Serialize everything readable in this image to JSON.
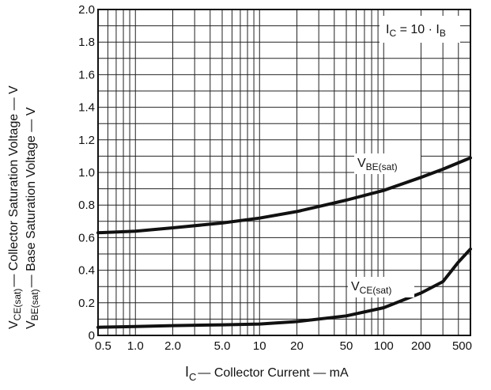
{
  "chart_data": {
    "type": "line",
    "title": "",
    "xscale": "log",
    "xlim": [
      0.5,
      500
    ],
    "ylim": [
      0,
      2.0
    ],
    "grid": true,
    "xlabel": {
      "main": "I",
      "sub": "C",
      "rest": "— Collector Current — mA"
    },
    "ylabel_outer": {
      "main": "V",
      "sub": "CE(sat)",
      "rest": "— Collector Saturation Voltage — V"
    },
    "ylabel_inner": {
      "main": "V",
      "sub": "BE(sat)",
      "rest": "— Base Saturation Voltage — V"
    },
    "x_tick_labels": [
      {
        "x": 0.5,
        "text": "0.5"
      },
      {
        "x": 1,
        "text": "1.0"
      },
      {
        "x": 2,
        "text": "2.0"
      },
      {
        "x": 5,
        "text": "5.0"
      },
      {
        "x": 10,
        "text": "10"
      },
      {
        "x": 20,
        "text": "20"
      },
      {
        "x": 50,
        "text": "50"
      },
      {
        "x": 100,
        "text": "100"
      },
      {
        "x": 200,
        "text": "200"
      },
      {
        "x": 500,
        "text": "500"
      }
    ],
    "y_tick_labels": [
      {
        "y": 0,
        "text": "0"
      },
      {
        "y": 0.2,
        "text": "0.2"
      },
      {
        "y": 0.4,
        "text": "0.4"
      },
      {
        "y": 0.6,
        "text": "0.6"
      },
      {
        "y": 0.8,
        "text": "0.8"
      },
      {
        "y": 1.0,
        "text": "1.0"
      },
      {
        "y": 1.2,
        "text": "1.2"
      },
      {
        "y": 1.4,
        "text": "1.4"
      },
      {
        "y": 1.6,
        "text": "1.6"
      },
      {
        "y": 1.8,
        "text": "1.8"
      },
      {
        "y": 2.0,
        "text": "2.0"
      }
    ],
    "condition": {
      "a": "I",
      "a_sub": "C",
      "mid": " = 10 · I",
      "b_sub": "B"
    },
    "series": [
      {
        "name": {
          "main": "V",
          "sub": "BE(sat)"
        },
        "x": [
          0.5,
          1,
          2,
          5,
          10,
          20,
          50,
          100,
          200,
          300,
          500
        ],
        "y": [
          0.63,
          0.64,
          0.66,
          0.69,
          0.72,
          0.76,
          0.83,
          0.89,
          0.97,
          1.02,
          1.09
        ]
      },
      {
        "name": {
          "main": "V",
          "sub": "CE(sat)"
        },
        "x": [
          0.5,
          1,
          2,
          5,
          10,
          20,
          50,
          100,
          200,
          300,
          400,
          500
        ],
        "y": [
          0.05,
          0.055,
          0.06,
          0.065,
          0.07,
          0.085,
          0.12,
          0.17,
          0.26,
          0.33,
          0.45,
          0.53
        ]
      }
    ]
  }
}
